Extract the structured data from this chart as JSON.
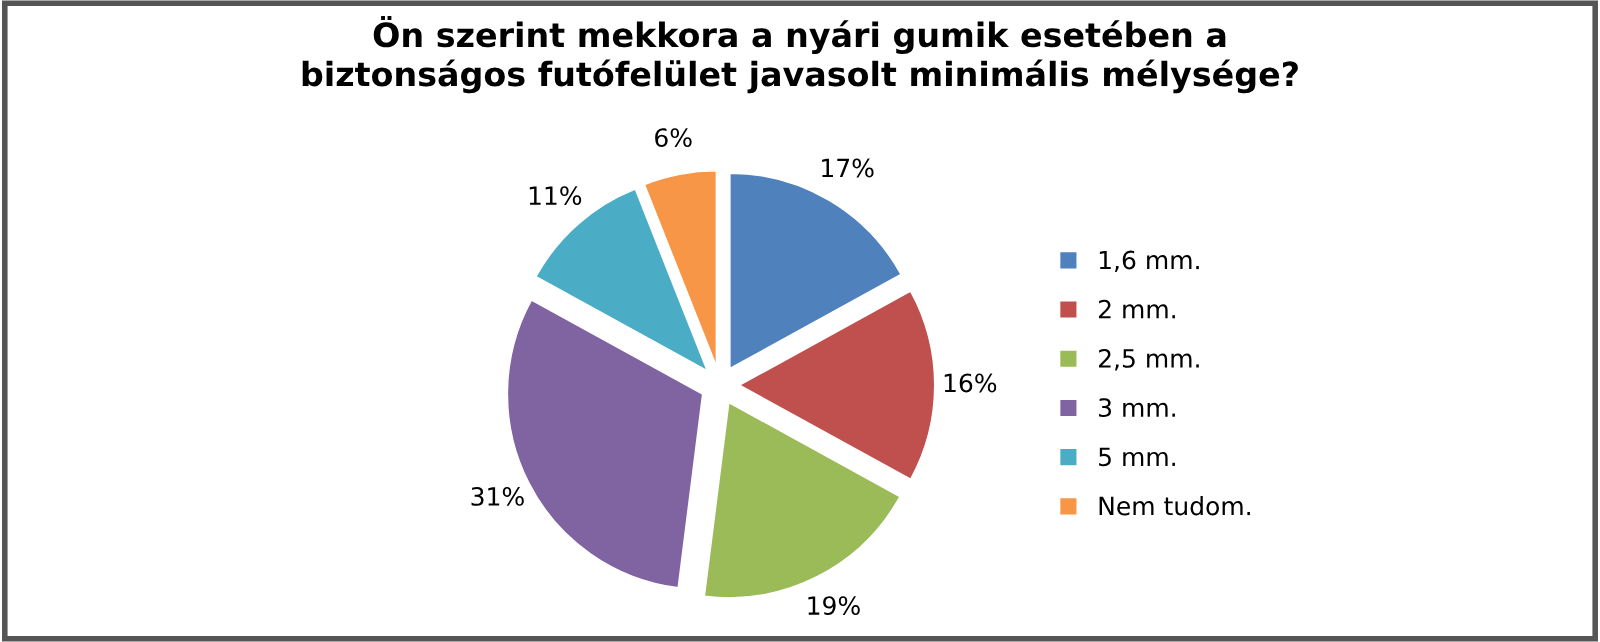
{
  "chart_data": {
    "type": "pie",
    "title": "Ön szerint mekkora a nyári gumik esetében a\nbiztonságos futófelület javasolt minimális mélysége?",
    "categories": [
      "1,6 mm.",
      "2 mm.",
      "2,5 mm.",
      "3 mm.",
      "5 mm.",
      "Nem tudom."
    ],
    "values": [
      17,
      16,
      19,
      31,
      11,
      6
    ],
    "colors": [
      "#4f81bd",
      "#c0504d",
      "#9bbb59",
      "#8064a2",
      "#4bacc6",
      "#f79646"
    ],
    "value_labels": [
      "17%",
      "16%",
      "19%",
      "31%",
      "11%",
      "6%"
    ],
    "legend": "right"
  }
}
